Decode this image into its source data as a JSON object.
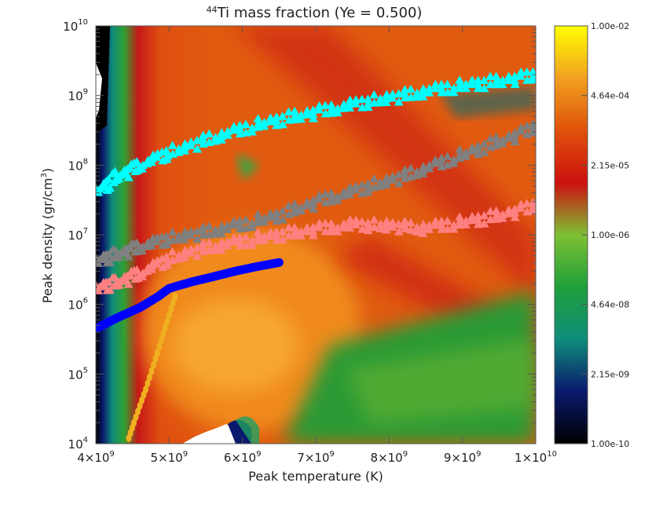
{
  "chart_data": {
    "type": "heatmap",
    "title": {
      "isotope_mass": "44",
      "text": "Ti mass fraction (Ye = 0.500)"
    },
    "xlabel": "Peak temperature (K)",
    "ylabel": {
      "main": "Peak density (gr/cm",
      "exponent": "3",
      "close": ")"
    },
    "x_axis": {
      "scale": "linear",
      "range": [
        4000000000.0,
        10000000000.0
      ],
      "ticks": [
        {
          "value": 4000000000.0,
          "mantissa": "4×10",
          "exp": "9"
        },
        {
          "value": 5000000000.0,
          "mantissa": "5×10",
          "exp": "9"
        },
        {
          "value": 6000000000.0,
          "mantissa": "6×10",
          "exp": "9"
        },
        {
          "value": 7000000000.0,
          "mantissa": "7×10",
          "exp": "9"
        },
        {
          "value": 8000000000.0,
          "mantissa": "8×10",
          "exp": "9"
        },
        {
          "value": 9000000000.0,
          "mantissa": "9×10",
          "exp": "9"
        },
        {
          "value": 10000000000.0,
          "mantissa": "1×10",
          "exp": "10"
        }
      ]
    },
    "y_axis": {
      "scale": "log",
      "range": [
        10000.0,
        10000000000.0
      ],
      "ticks": [
        {
          "value": 10000.0,
          "mantissa": "10",
          "exp": "4"
        },
        {
          "value": 100000.0,
          "mantissa": "10",
          "exp": "5"
        },
        {
          "value": 1000000.0,
          "mantissa": "10",
          "exp": "6"
        },
        {
          "value": 10000000.0,
          "mantissa": "10",
          "exp": "7"
        },
        {
          "value": 100000000.0,
          "mantissa": "10",
          "exp": "8"
        },
        {
          "value": 1000000000.0,
          "mantissa": "10",
          "exp": "9"
        },
        {
          "value": 10000000000.0,
          "mantissa": "10",
          "exp": "10"
        }
      ]
    },
    "colorbar": {
      "scale": "log",
      "range": [
        1e-10,
        0.01
      ],
      "ticks": [
        "1.00e-02",
        "4.64e-04",
        "2.15e-05",
        "1.00e-06",
        "4.64e-08",
        "2.15e-09",
        "1.00e-10"
      ],
      "colors": [
        "#000000",
        "#0a1a6e",
        "#0f8c7a",
        "#1fa03a",
        "#7ec034",
        "#cc1010",
        "#e0520a",
        "#f0a020",
        "#ffff00"
      ]
    },
    "series": [
      {
        "color": "#00ffff",
        "marker": "triangle",
        "points": [
          [
            4020000000.0,
            42000000.0
          ],
          [
            4300000000.0,
            70000000.0
          ],
          [
            4600000000.0,
            100000000.0
          ],
          [
            5000000000.0,
            150000000.0
          ],
          [
            5500000000.0,
            230000000.0
          ],
          [
            6000000000.0,
            330000000.0
          ],
          [
            6500000000.0,
            450000000.0
          ],
          [
            7000000000.0,
            580000000.0
          ],
          [
            7500000000.0,
            740000000.0
          ],
          [
            8000000000.0,
            920000000.0
          ],
          [
            8500000000.0,
            1150000000.0
          ],
          [
            9000000000.0,
            1380000000.0
          ],
          [
            9500000000.0,
            1620000000.0
          ],
          [
            10000000000.0,
            1950000000.0
          ]
        ]
      },
      {
        "color": "#808080",
        "marker": "triangle",
        "points": [
          [
            4020000000.0,
            4200000.0
          ],
          [
            4300000000.0,
            5300000.0
          ],
          [
            4600000000.0,
            6800000.0
          ],
          [
            5000000000.0,
            8800000.0
          ],
          [
            5500000000.0,
            11000000.0
          ],
          [
            6000000000.0,
            14000000.0
          ],
          [
            6500000000.0,
            19000000.0
          ],
          [
            7000000000.0,
            30000000.0
          ],
          [
            7500000000.0,
            42000000.0
          ],
          [
            8000000000.0,
            60000000.0
          ],
          [
            8500000000.0,
            90000000.0
          ],
          [
            9000000000.0,
            140000000.0
          ],
          [
            9500000000.0,
            220000000.0
          ],
          [
            10000000000.0,
            350000000.0
          ]
        ]
      },
      {
        "color": "#ff8080",
        "marker": "triangle",
        "points": [
          [
            4020000000.0,
            1700000.0
          ],
          [
            4300000000.0,
            2100000.0
          ],
          [
            4600000000.0,
            2800000.0
          ],
          [
            5000000000.0,
            4500000.0
          ],
          [
            5500000000.0,
            6500000.0
          ],
          [
            6000000000.0,
            8000000.0
          ],
          [
            6500000000.0,
            10000000.0
          ],
          [
            7000000000.0,
            12000000.0
          ],
          [
            7500000000.0,
            14000000.0
          ],
          [
            8000000000.0,
            13500000.0
          ],
          [
            8500000000.0,
            12500000.0
          ],
          [
            9000000000.0,
            15000000.0
          ],
          [
            9500000000.0,
            19000000.0
          ],
          [
            10000000000.0,
            26000000.0
          ]
        ]
      },
      {
        "color": "#0000ff",
        "marker": "circle",
        "points": [
          [
            4000000000.0,
            450000.0
          ],
          [
            4300000000.0,
            650000.0
          ],
          [
            4600000000.0,
            900000.0
          ],
          [
            4850000000.0,
            1300000.0
          ],
          [
            5000000000.0,
            1700000.0
          ],
          [
            5300000000.0,
            2100000.0
          ],
          [
            5600000000.0,
            2500000.0
          ],
          [
            5900000000.0,
            3000000.0
          ],
          [
            6200000000.0,
            3500000.0
          ],
          [
            6500000000.0,
            4000000.0
          ]
        ]
      },
      {
        "color": "#f0b020",
        "marker": "circle",
        "points": [
          [
            4450000000.0,
            12000.0
          ],
          [
            4520000000.0,
            20000.0
          ],
          [
            4600000000.0,
            35000.0
          ],
          [
            4680000000.0,
            60000.0
          ],
          [
            4760000000.0,
            110000.0
          ],
          [
            4840000000.0,
            200000.0
          ],
          [
            4920000000.0,
            380000.0
          ],
          [
            5000000000.0,
            700000.0
          ],
          [
            5080000000.0,
            1300000.0
          ]
        ]
      }
    ]
  }
}
